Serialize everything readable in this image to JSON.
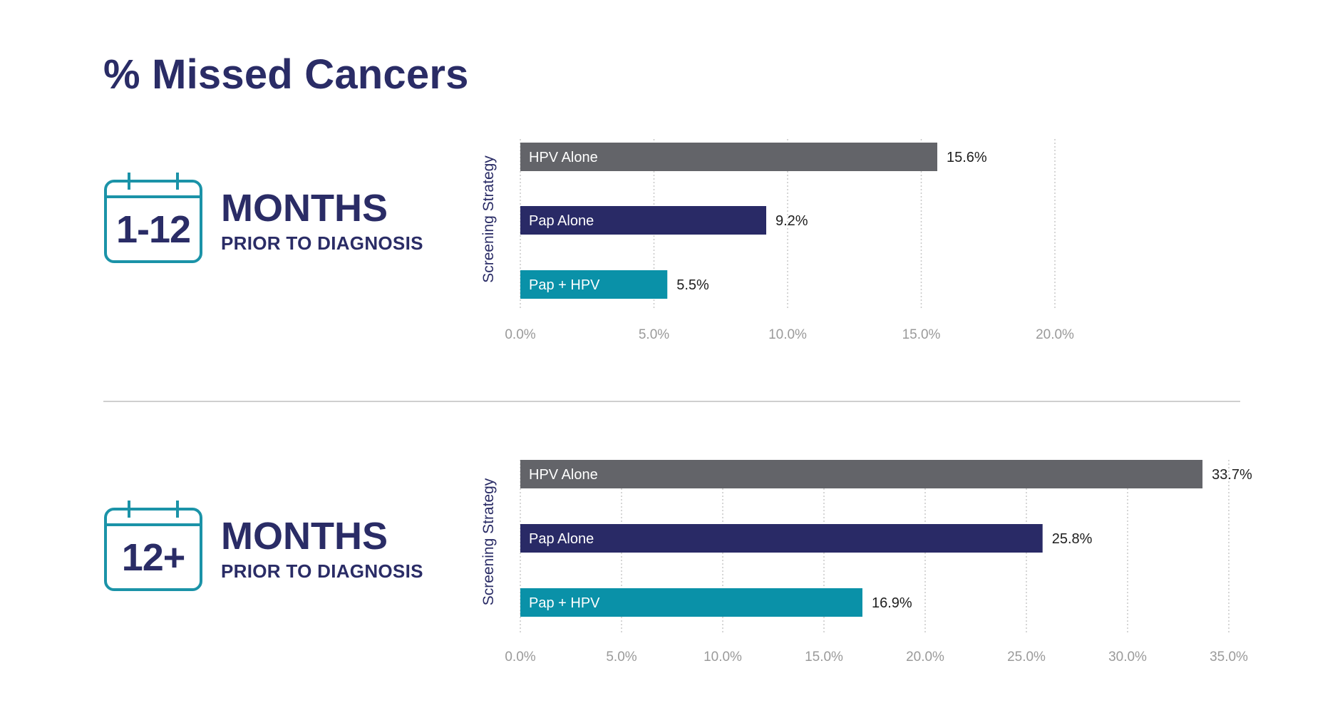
{
  "title": "% Missed Cancers",
  "colors": {
    "navy": "#2a2c66",
    "teal": "#1b93a8",
    "gray_bar": "#636469",
    "pap_alone": "#292a66",
    "pap_hpv": "#0a91a8",
    "axis_text": "#9a9a9a",
    "grid": "#c8c8c8"
  },
  "sections": [
    {
      "icon": "calendar-icon",
      "calendar_label": "1-12",
      "months_label": "MONTHS",
      "prior_label": "PRIOR TO DIAGNOSIS"
    },
    {
      "icon": "calendar-icon",
      "calendar_label": "12+",
      "months_label": "MONTHS",
      "prior_label": "PRIOR TO DIAGNOSIS"
    }
  ],
  "chart_data": [
    {
      "type": "bar",
      "orientation": "horizontal",
      "categories": [
        "HPV Alone",
        "Pap Alone",
        "Pap + HPV"
      ],
      "values": [
        15.6,
        9.2,
        5.5
      ],
      "value_labels": [
        "15.6%",
        "9.2%",
        "5.5%"
      ],
      "ylabel": "Screening Strategy",
      "xlim": [
        0,
        20
      ],
      "xticks": [
        0,
        5,
        10,
        15,
        20
      ],
      "xtick_labels": [
        "0.0%",
        "5.0%",
        "10.0%",
        "15.0%",
        "20.0%"
      ],
      "grid": "vertical dotted",
      "bar_colors": [
        "#636469",
        "#292a66",
        "#0a91a8"
      ]
    },
    {
      "type": "bar",
      "orientation": "horizontal",
      "categories": [
        "HPV Alone",
        "Pap Alone",
        "Pap + HPV"
      ],
      "values": [
        33.7,
        25.8,
        16.9
      ],
      "value_labels": [
        "33.7%",
        "25.8%",
        "16.9%"
      ],
      "ylabel": "Screening Strategy",
      "xlim": [
        0,
        35
      ],
      "xticks": [
        0,
        5,
        10,
        15,
        20,
        25,
        30,
        35
      ],
      "xtick_labels": [
        "0.0%",
        "5.0%",
        "10.0%",
        "15.0%",
        "20.0%",
        "25.0%",
        "30.0%",
        "35.0%"
      ],
      "grid": "vertical dotted",
      "bar_colors": [
        "#636469",
        "#292a66",
        "#0a91a8"
      ]
    }
  ]
}
